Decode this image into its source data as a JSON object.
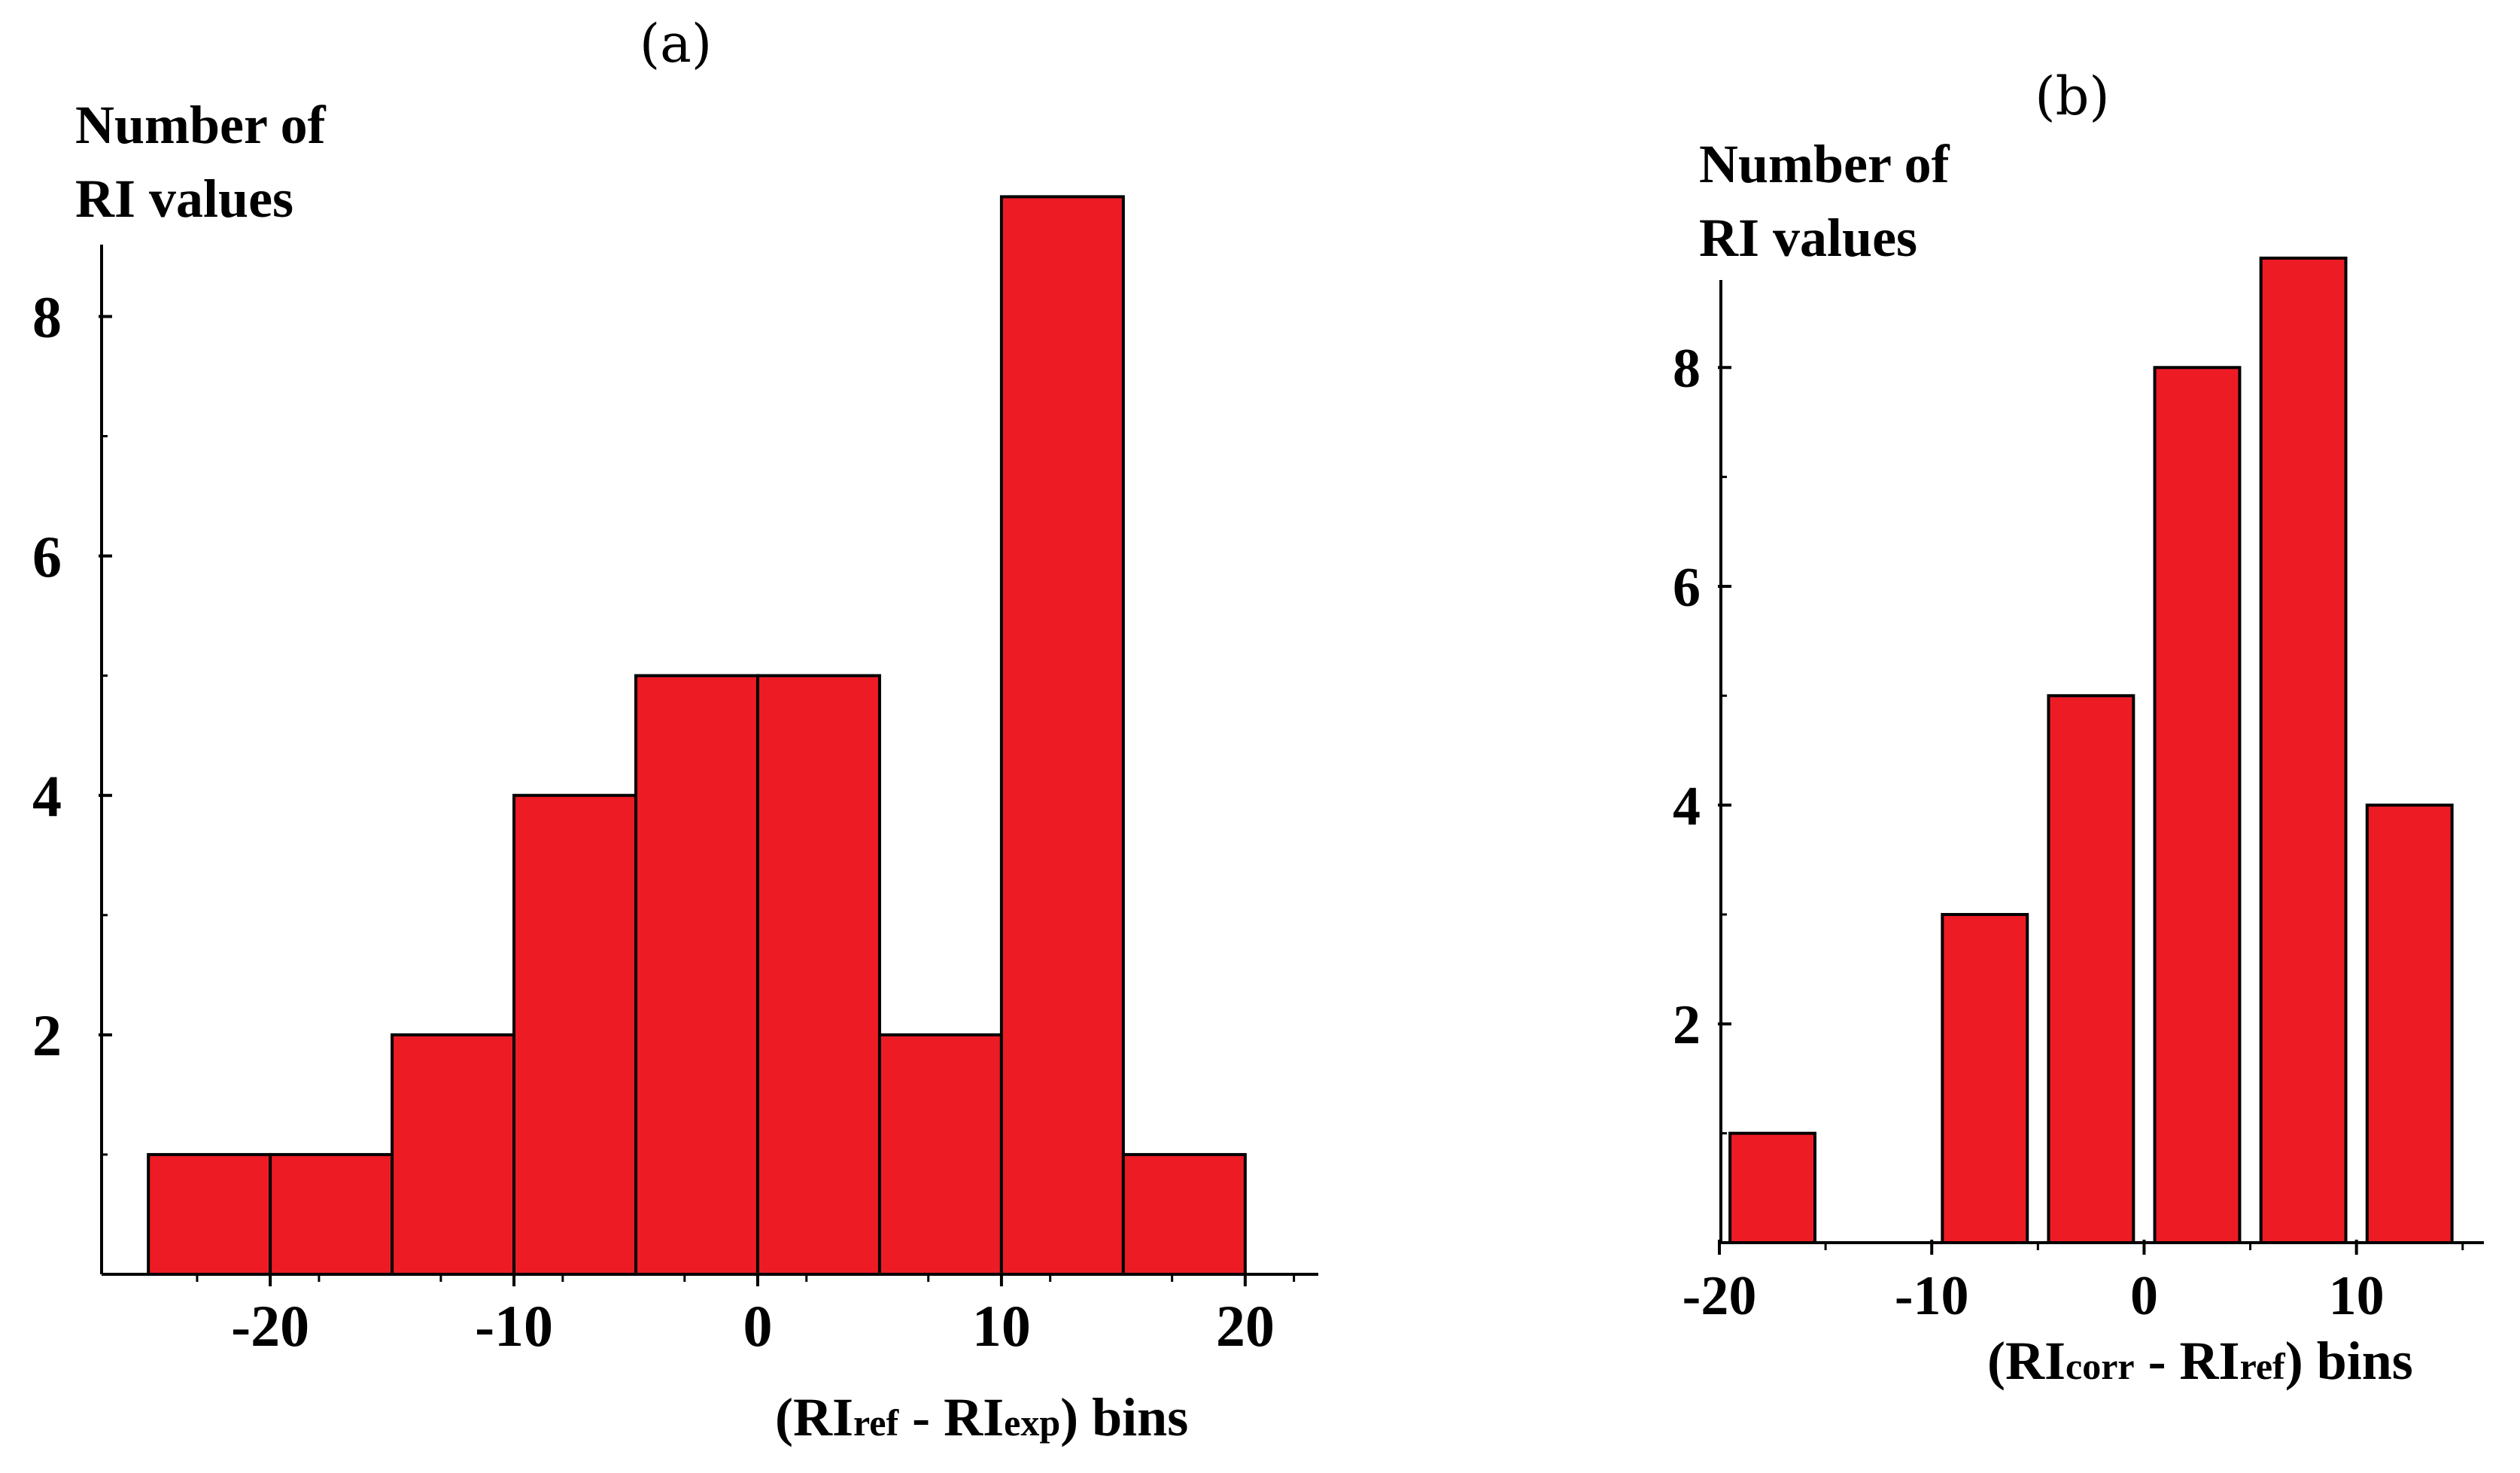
{
  "chart_data": [
    {
      "id": "a",
      "type": "bar",
      "panel_label": "(a)",
      "ylabel_line1": "Number of",
      "ylabel_line2": "RI values",
      "xlabel": {
        "pre": "(RI",
        "sub1": "ref",
        "mid": " - RI",
        "sub2": "exp",
        "post": ") bins"
      },
      "xlim": [
        -28,
        23
      ],
      "ylim": [
        0,
        8.6
      ],
      "xticks": [
        -20,
        -10,
        0,
        10,
        20
      ],
      "yticks": [
        2,
        4,
        6,
        8
      ],
      "bin_width": 5,
      "bins": [
        {
          "center": -22.5,
          "value": 1
        },
        {
          "center": -17.5,
          "value": 1
        },
        {
          "center": -12.5,
          "value": 2
        },
        {
          "center": -7.5,
          "value": 4
        },
        {
          "center": -2.5,
          "value": 5
        },
        {
          "center": 2.5,
          "value": 5
        },
        {
          "center": 7.5,
          "value": 2
        },
        {
          "center": 12.5,
          "value": 9
        },
        {
          "center": 17.5,
          "value": 1
        }
      ]
    },
    {
      "id": "b",
      "type": "bar",
      "panel_label": "(b)",
      "ylabel_line1": "Number of",
      "ylabel_line2": "RI values",
      "xlabel": {
        "pre": "(RI",
        "sub1": "corr",
        "mid": " - RI",
        "sub2": "ref",
        "post": ") bins"
      },
      "xlim": [
        -20,
        16
      ],
      "ylim": [
        0,
        8.8
      ],
      "xticks": [
        -20,
        -10,
        0,
        10
      ],
      "yticks": [
        2,
        4,
        6,
        8
      ],
      "bin_width": 4,
      "bins": [
        {
          "center": -17.5,
          "value": 1
        },
        {
          "center": -7.5,
          "value": 3
        },
        {
          "center": -2.5,
          "value": 5
        },
        {
          "center": 2.5,
          "value": 8
        },
        {
          "center": 7.5,
          "value": 9
        },
        {
          "center": 12.5,
          "value": 4
        }
      ]
    }
  ]
}
